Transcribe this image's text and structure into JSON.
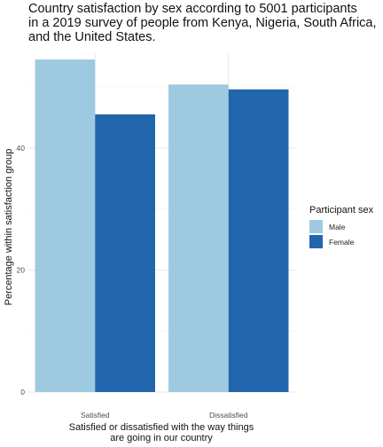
{
  "chart_data": {
    "type": "bar",
    "title_lines": [
      "Country satisfaction by sex according to 5001 participants",
      "in a 2019 survey of people from Kenya, Nigeria, South Africa,",
      "and the United States."
    ],
    "categories": [
      "Satisfied",
      "Dissatisfied"
    ],
    "series": [
      {
        "name": "Male",
        "color": "#9ecae1",
        "values": [
          54.5,
          50.4
        ]
      },
      {
        "name": "Female",
        "color": "#2166ac",
        "values": [
          45.5,
          49.6
        ]
      }
    ],
    "xlabel_lines": [
      "Satisfied or dissatisfied with the way things",
      "are going in our country"
    ],
    "ylabel": "Percentage within satisfaction group",
    "yticks": [
      0,
      20,
      40
    ],
    "ylim": [
      0,
      57
    ],
    "legend_title": "Participant sex",
    "legend_position": "right",
    "grid": true
  }
}
